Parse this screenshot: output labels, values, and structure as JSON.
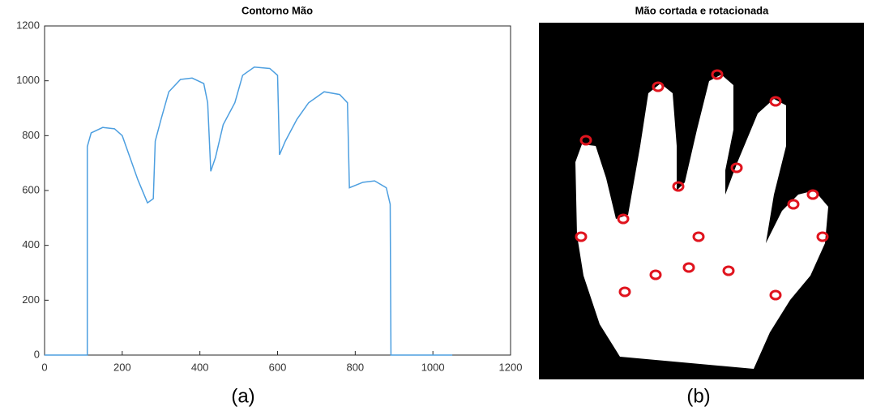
{
  "chart_data": {
    "type": "line",
    "title": "Contorno Mão",
    "x": [
      0,
      110,
      110,
      120,
      150,
      180,
      200,
      220,
      240,
      265,
      280,
      285,
      300,
      320,
      350,
      380,
      410,
      420,
      428,
      440,
      460,
      490,
      510,
      540,
      580,
      600,
      605,
      620,
      650,
      680,
      720,
      760,
      780,
      785,
      820,
      850,
      880,
      890,
      892,
      1050
    ],
    "series": [
      {
        "color": "#4d9fe0",
        "values": [
          0,
          0,
          760,
          810,
          830,
          825,
          800,
          720,
          640,
          555,
          570,
          780,
          860,
          960,
          1005,
          1010,
          990,
          920,
          670,
          720,
          840,
          920,
          1020,
          1050,
          1045,
          1020,
          730,
          780,
          860,
          920,
          960,
          950,
          920,
          610,
          630,
          635,
          610,
          550,
          0,
          0
        ]
      }
    ],
    "xlim": [
      0,
      1200
    ],
    "xticks": [
      0,
      200,
      400,
      600,
      800,
      1000,
      1200
    ],
    "ylim": [
      0,
      1200
    ],
    "yticks": [
      0,
      200,
      400,
      600,
      800,
      1000,
      1200
    ],
    "grid": false
  },
  "image": {
    "title": "Mão cortada e rotacionada"
  },
  "captions": [
    "(a)",
    "(b)"
  ]
}
